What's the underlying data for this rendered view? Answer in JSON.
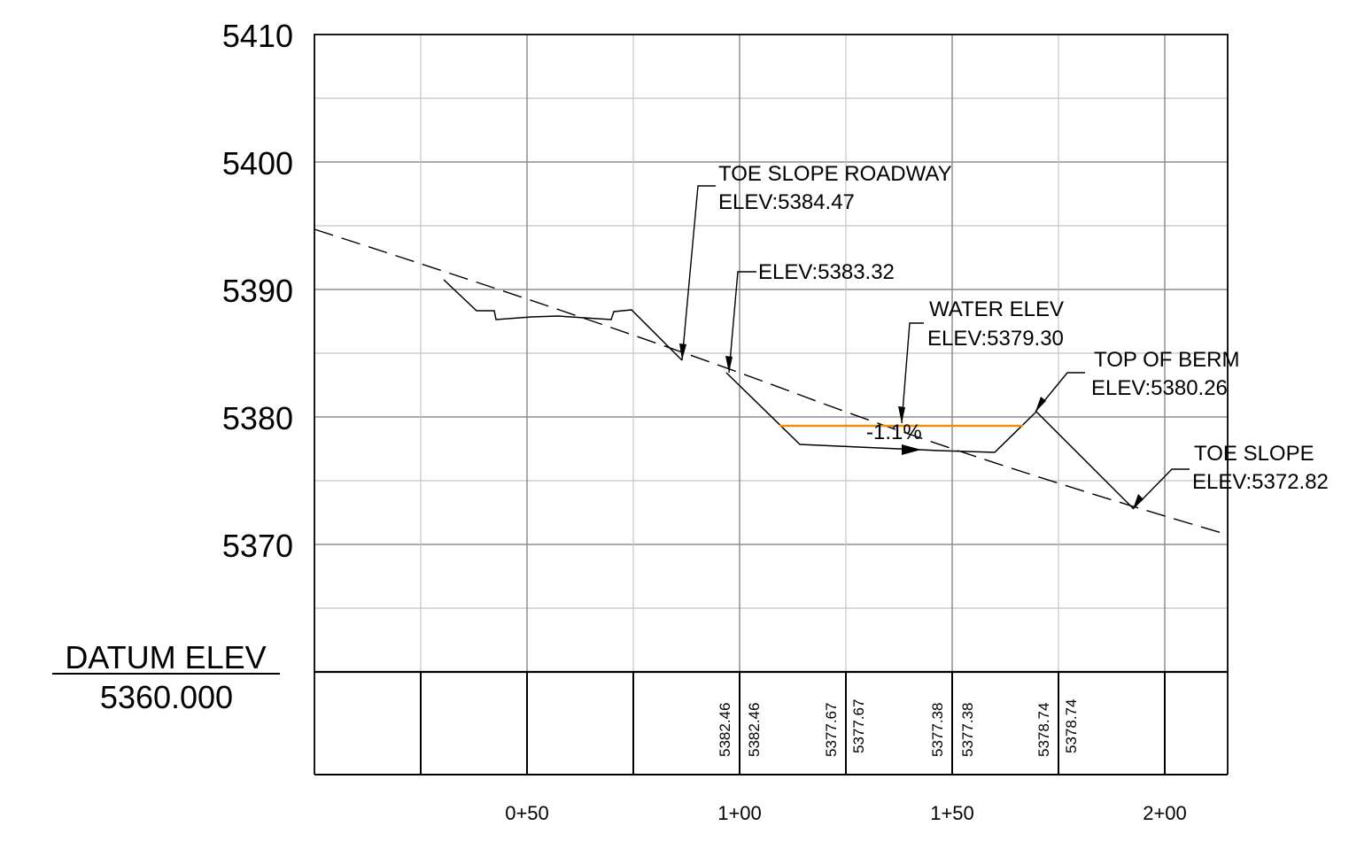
{
  "y_axis": {
    "ticks": [
      "5410",
      "5400",
      "5390",
      "5380",
      "5370"
    ]
  },
  "x_axis": {
    "ticks": [
      "0+50",
      "1+00",
      "1+50",
      "2+00"
    ]
  },
  "datum": {
    "label": "DATUM ELEV",
    "value": "5360.000"
  },
  "callouts": {
    "toe_roadway": {
      "line1": "TOE SLOPE ROADWAY",
      "line2": "ELEV:5384.47"
    },
    "mid": {
      "line1": "ELEV:5383.32"
    },
    "water": {
      "line1": "WATER ELEV",
      "line2": "ELEV:5379.30"
    },
    "berm": {
      "line1": "TOP OF BERM",
      "line2": "ELEV:5380.26"
    },
    "toe": {
      "line1": "TOE SLOPE",
      "line2": "ELEV:5372.82"
    }
  },
  "slope_label": "-1.1%",
  "table_cells": [
    "5382.46",
    "5382.46",
    "5377.67",
    "5377.67",
    "5377.38",
    "5377.38",
    "5378.74",
    "5378.74"
  ],
  "colors": {
    "water_line": "#f0900a",
    "grid": "#a0a0a0",
    "line": "#000000"
  }
}
